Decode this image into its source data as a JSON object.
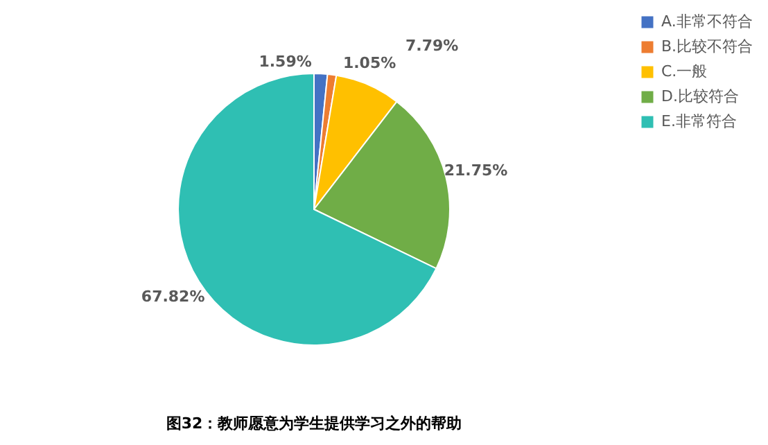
{
  "chart_data": {
    "type": "pie",
    "title": "图32：教师愿意为学生提供学习之外的帮助",
    "categories": [
      "A.非常不符合",
      "B.比较不符合",
      "C.一般",
      "D.比较符合",
      "E.非常符合"
    ],
    "values": [
      1.59,
      1.05,
      7.79,
      21.75,
      67.82
    ],
    "colors": [
      "#4472c4",
      "#ed7d31",
      "#ffc000",
      "#70ad47",
      "#2fbfb3"
    ],
    "value_labels": [
      "1.59%",
      "1.05%",
      "7.79%",
      "21.75%",
      "67.82%"
    ],
    "legend": "right"
  }
}
